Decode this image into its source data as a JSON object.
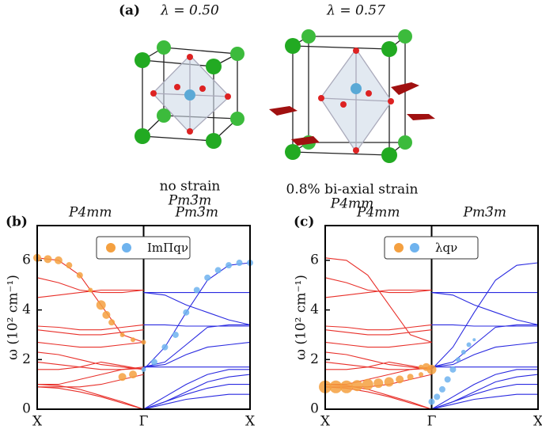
{
  "panel_a": {
    "label": "(a)",
    "structures": [
      {
        "lambda": "λ = 0.50",
        "caption": "no strain",
        "group": "Pm3̄m"
      },
      {
        "lambda": "λ = 0.57",
        "caption": "0.8% bi-axial strain",
        "group": "P4mm"
      }
    ]
  },
  "chart_data": [
    {
      "type": "dispersion",
      "panel_label": "(b)",
      "left_title": "P4mm",
      "left_color": "#e8302a",
      "right_title": "Pm3̄m",
      "right_color": "#2a2ae0",
      "ylabel": "ω (10² cm⁻¹)",
      "xlim": [
        0,
        2
      ],
      "ylim": [
        0,
        7.4
      ],
      "xticks": [
        {
          "value": 0,
          "label": "X"
        },
        {
          "value": 1,
          "label": "Γ"
        },
        {
          "value": 2,
          "label": "X"
        }
      ],
      "yticks": [
        0,
        2,
        4,
        6
      ],
      "legend": {
        "label": "ImΠqν",
        "colors": [
          "#f4a040",
          "#6fb3ee"
        ]
      },
      "series": [
        {
          "color": "#e8302a",
          "x": [
            0,
            0.2,
            0.4,
            0.6,
            0.8,
            1
          ],
          "values": [
            6.1,
            6.0,
            5.4,
            4.2,
            3.0,
            2.7
          ]
        },
        {
          "color": "#e8302a",
          "x": [
            0,
            0.2,
            0.4,
            0.6,
            0.8,
            1
          ],
          "values": [
            5.3,
            5.1,
            4.8,
            4.7,
            4.7,
            4.8
          ]
        },
        {
          "color": "#e8302a",
          "x": [
            0,
            0.2,
            0.4,
            0.6,
            0.8,
            1
          ],
          "values": [
            4.5,
            4.6,
            4.7,
            4.8,
            4.8,
            4.8
          ]
        },
        {
          "color": "#e8302a",
          "x": [
            0,
            0.2,
            0.4,
            0.6,
            0.8,
            1
          ],
          "values": [
            3.35,
            3.3,
            3.2,
            3.2,
            3.3,
            3.4
          ]
        },
        {
          "color": "#e8302a",
          "x": [
            0,
            0.2,
            0.4,
            0.6,
            0.8,
            1
          ],
          "values": [
            3.2,
            3.1,
            3.0,
            3.0,
            3.1,
            3.2
          ]
        },
        {
          "color": "#e8302a",
          "x": [
            0,
            0.2,
            0.4,
            0.6,
            0.8,
            1
          ],
          "values": [
            2.7,
            2.6,
            2.5,
            2.5,
            2.6,
            2.7
          ]
        },
        {
          "color": "#e8302a",
          "x": [
            0,
            0.2,
            0.4,
            0.6,
            0.8,
            1
          ],
          "values": [
            2.3,
            2.2,
            2.0,
            1.8,
            1.7,
            1.6
          ]
        },
        {
          "color": "#e8302a",
          "x": [
            0,
            0.2,
            0.4,
            0.6,
            0.8,
            1
          ],
          "values": [
            1.9,
            1.8,
            1.7,
            1.6,
            1.6,
            1.65
          ]
        },
        {
          "color": "#e8302a",
          "x": [
            0,
            0.2,
            0.4,
            0.6,
            0.8,
            1
          ],
          "values": [
            1.6,
            1.6,
            1.7,
            1.9,
            1.75,
            1.6
          ]
        },
        {
          "color": "#e8302a",
          "x": [
            0,
            0.2,
            0.4,
            0.6,
            0.8,
            1
          ],
          "values": [
            1.0,
            1.0,
            1.2,
            1.4,
            1.6,
            1.7
          ]
        },
        {
          "color": "#e8302a",
          "x": [
            0,
            0.2,
            0.4,
            0.6,
            0.8,
            1
          ],
          "values": [
            0.9,
            0.9,
            0.9,
            1.0,
            1.2,
            1.4
          ]
        },
        {
          "color": "#e8302a",
          "x": [
            0,
            0.2,
            0.4,
            0.6,
            0.8,
            1
          ],
          "values": [
            1.0,
            0.95,
            0.8,
            0.55,
            0.3,
            0
          ]
        },
        {
          "color": "#e8302a",
          "x": [
            0,
            0.2,
            0.4,
            0.6,
            0.8,
            1
          ],
          "values": [
            0.9,
            0.85,
            0.7,
            0.5,
            0.25,
            0
          ]
        },
        {
          "color": "#2a2ae0",
          "x": [
            1,
            1.2,
            1.4,
            1.6,
            1.8,
            2
          ],
          "values": [
            1.6,
            2.5,
            3.9,
            5.2,
            5.8,
            5.9
          ]
        },
        {
          "color": "#2a2ae0",
          "x": [
            1,
            1.2,
            1.4,
            1.6,
            1.8,
            2
          ],
          "values": [
            1.7,
            1.9,
            2.6,
            3.3,
            3.4,
            3.4
          ]
        },
        {
          "color": "#2a2ae0",
          "x": [
            1,
            1.2,
            1.4,
            1.6,
            1.8,
            2
          ],
          "values": [
            4.7,
            4.6,
            4.2,
            3.9,
            3.6,
            3.4
          ]
        },
        {
          "color": "#2a2ae0",
          "x": [
            1,
            1.2,
            1.4,
            1.6,
            1.8,
            2
          ],
          "values": [
            4.7,
            4.7,
            4.7,
            4.7,
            4.7,
            4.7
          ]
        },
        {
          "color": "#2a2ae0",
          "x": [
            1,
            1.2,
            1.4,
            1.6,
            1.8,
            2
          ],
          "values": [
            3.4,
            3.4,
            3.35,
            3.35,
            3.35,
            3.35
          ]
        },
        {
          "color": "#2a2ae0",
          "x": [
            1,
            1.2,
            1.4,
            1.6,
            1.8,
            2
          ],
          "values": [
            1.7,
            1.7,
            1.7,
            1.7,
            1.7,
            1.7
          ]
        },
        {
          "color": "#2a2ae0",
          "x": [
            1,
            1.2,
            1.4,
            1.6,
            1.8,
            2
          ],
          "values": [
            1.7,
            1.8,
            2.2,
            2.5,
            2.6,
            2.7
          ]
        },
        {
          "color": "#2a2ae0",
          "x": [
            1,
            1.2,
            1.4,
            1.6,
            1.8,
            2
          ],
          "values": [
            0,
            0.5,
            1.0,
            1.4,
            1.6,
            1.6
          ]
        },
        {
          "color": "#2a2ae0",
          "x": [
            1,
            1.2,
            1.4,
            1.6,
            1.8,
            2
          ],
          "values": [
            0,
            0.3,
            0.6,
            0.85,
            1.0,
            1.0
          ]
        },
        {
          "color": "#2a2ae0",
          "x": [
            1,
            1.2,
            1.4,
            1.6,
            1.8,
            2
          ],
          "values": [
            0,
            0.2,
            0.4,
            0.5,
            0.6,
            0.6
          ]
        },
        {
          "color": "#2a2ae0",
          "x": [
            1,
            1.2,
            1.4,
            1.6,
            1.8,
            2
          ],
          "values": [
            0,
            0.3,
            0.7,
            1.1,
            1.3,
            1.4
          ]
        }
      ],
      "fat": [
        {
          "color": "#f4a040",
          "x": [
            0,
            0.1,
            0.2,
            0.3,
            0.4,
            0.5,
            0.6,
            0.65,
            0.7,
            0.8,
            0.9,
            1.0,
            0.8,
            0.9
          ],
          "values": [
            6.1,
            6.05,
            6.0,
            5.8,
            5.4,
            4.8,
            4.2,
            3.8,
            3.5,
            3.0,
            2.8,
            2.7,
            1.3,
            1.4
          ],
          "sizes": [
            5,
            5,
            5,
            4,
            4,
            3,
            6,
            5,
            4,
            3,
            3,
            3,
            5,
            5
          ]
        },
        {
          "color": "#6fb3ee",
          "x": [
            1.0,
            1.1,
            1.2,
            1.3,
            1.4,
            1.5,
            1.6,
            1.7,
            1.8,
            1.9,
            2.0
          ],
          "values": [
            1.6,
            1.9,
            2.5,
            3.0,
            3.9,
            4.8,
            5.3,
            5.6,
            5.8,
            5.9,
            5.9
          ],
          "sizes": [
            3,
            4,
            4,
            4,
            4,
            4,
            4,
            4,
            4,
            4,
            4
          ]
        }
      ]
    },
    {
      "type": "dispersion",
      "panel_label": "(c)",
      "left_title": "P4mm",
      "left_color": "#e8302a",
      "right_title": "Pm3̄m",
      "right_color": "#2a2ae0",
      "ylabel": "ω (10² cm⁻¹)",
      "xlim": [
        0,
        2
      ],
      "ylim": [
        0,
        7.4
      ],
      "xticks": [
        {
          "value": 0,
          "label": "X"
        },
        {
          "value": 1,
          "label": "Γ"
        },
        {
          "value": 2,
          "label": "X"
        }
      ],
      "yticks": [
        0,
        2,
        4,
        6
      ],
      "legend": {
        "label": "λqν",
        "colors": [
          "#f4a040",
          "#6fb3ee"
        ]
      },
      "series": [
        {
          "color": "#e8302a",
          "x": [
            0,
            0.2,
            0.4,
            0.6,
            0.8,
            1
          ],
          "values": [
            6.1,
            6.0,
            5.4,
            4.2,
            3.0,
            2.7
          ]
        },
        {
          "color": "#e8302a",
          "x": [
            0,
            0.2,
            0.4,
            0.6,
            0.8,
            1
          ],
          "values": [
            5.3,
            5.1,
            4.8,
            4.7,
            4.7,
            4.8
          ]
        },
        {
          "color": "#e8302a",
          "x": [
            0,
            0.2,
            0.4,
            0.6,
            0.8,
            1
          ],
          "values": [
            4.5,
            4.6,
            4.7,
            4.8,
            4.8,
            4.8
          ]
        },
        {
          "color": "#e8302a",
          "x": [
            0,
            0.2,
            0.4,
            0.6,
            0.8,
            1
          ],
          "values": [
            3.35,
            3.3,
            3.2,
            3.2,
            3.3,
            3.4
          ]
        },
        {
          "color": "#e8302a",
          "x": [
            0,
            0.2,
            0.4,
            0.6,
            0.8,
            1
          ],
          "values": [
            3.2,
            3.1,
            3.0,
            3.0,
            3.1,
            3.2
          ]
        },
        {
          "color": "#e8302a",
          "x": [
            0,
            0.2,
            0.4,
            0.6,
            0.8,
            1
          ],
          "values": [
            2.7,
            2.6,
            2.5,
            2.5,
            2.6,
            2.7
          ]
        },
        {
          "color": "#e8302a",
          "x": [
            0,
            0.2,
            0.4,
            0.6,
            0.8,
            1
          ],
          "values": [
            2.3,
            2.2,
            2.0,
            1.8,
            1.7,
            1.6
          ]
        },
        {
          "color": "#e8302a",
          "x": [
            0,
            0.2,
            0.4,
            0.6,
            0.8,
            1
          ],
          "values": [
            1.9,
            1.8,
            1.7,
            1.6,
            1.6,
            1.65
          ]
        },
        {
          "color": "#e8302a",
          "x": [
            0,
            0.2,
            0.4,
            0.6,
            0.8,
            1
          ],
          "values": [
            1.6,
            1.6,
            1.7,
            1.9,
            1.75,
            1.6
          ]
        },
        {
          "color": "#e8302a",
          "x": [
            0,
            0.2,
            0.4,
            0.6,
            0.8,
            1
          ],
          "values": [
            1.0,
            1.0,
            1.2,
            1.4,
            1.6,
            1.7
          ]
        },
        {
          "color": "#e8302a",
          "x": [
            0,
            0.2,
            0.4,
            0.6,
            0.8,
            1
          ],
          "values": [
            0.9,
            0.9,
            0.9,
            1.0,
            1.2,
            1.4
          ]
        },
        {
          "color": "#e8302a",
          "x": [
            0,
            0.2,
            0.4,
            0.6,
            0.8,
            1
          ],
          "values": [
            1.0,
            0.95,
            0.8,
            0.55,
            0.3,
            0
          ]
        },
        {
          "color": "#e8302a",
          "x": [
            0,
            0.2,
            0.4,
            0.6,
            0.8,
            1
          ],
          "values": [
            0.9,
            0.85,
            0.7,
            0.5,
            0.25,
            0
          ]
        },
        {
          "color": "#2a2ae0",
          "x": [
            1,
            1.2,
            1.4,
            1.6,
            1.8,
            2
          ],
          "values": [
            1.6,
            2.5,
            3.9,
            5.2,
            5.8,
            5.9
          ]
        },
        {
          "color": "#2a2ae0",
          "x": [
            1,
            1.2,
            1.4,
            1.6,
            1.8,
            2
          ],
          "values": [
            1.7,
            1.9,
            2.6,
            3.3,
            3.4,
            3.4
          ]
        },
        {
          "color": "#2a2ae0",
          "x": [
            1,
            1.2,
            1.4,
            1.6,
            1.8,
            2
          ],
          "values": [
            4.7,
            4.6,
            4.2,
            3.9,
            3.6,
            3.4
          ]
        },
        {
          "color": "#2a2ae0",
          "x": [
            1,
            1.2,
            1.4,
            1.6,
            1.8,
            2
          ],
          "values": [
            4.7,
            4.7,
            4.7,
            4.7,
            4.7,
            4.7
          ]
        },
        {
          "color": "#2a2ae0",
          "x": [
            1,
            1.2,
            1.4,
            1.6,
            1.8,
            2
          ],
          "values": [
            3.4,
            3.4,
            3.35,
            3.35,
            3.35,
            3.35
          ]
        },
        {
          "color": "#2a2ae0",
          "x": [
            1,
            1.2,
            1.4,
            1.6,
            1.8,
            2
          ],
          "values": [
            1.7,
            1.7,
            1.7,
            1.7,
            1.7,
            1.7
          ]
        },
        {
          "color": "#2a2ae0",
          "x": [
            1,
            1.2,
            1.4,
            1.6,
            1.8,
            2
          ],
          "values": [
            1.7,
            1.8,
            2.2,
            2.5,
            2.6,
            2.7
          ]
        },
        {
          "color": "#2a2ae0",
          "x": [
            1,
            1.2,
            1.4,
            1.6,
            1.8,
            2
          ],
          "values": [
            0,
            0.5,
            1.0,
            1.4,
            1.6,
            1.6
          ]
        },
        {
          "color": "#2a2ae0",
          "x": [
            1,
            1.2,
            1.4,
            1.6,
            1.8,
            2
          ],
          "values": [
            0,
            0.3,
            0.6,
            0.85,
            1.0,
            1.0
          ]
        },
        {
          "color": "#2a2ae0",
          "x": [
            1,
            1.2,
            1.4,
            1.6,
            1.8,
            2
          ],
          "values": [
            0,
            0.2,
            0.4,
            0.5,
            0.6,
            0.6
          ]
        },
        {
          "color": "#2a2ae0",
          "x": [
            1,
            1.2,
            1.4,
            1.6,
            1.8,
            2
          ],
          "values": [
            0,
            0.3,
            0.7,
            1.1,
            1.3,
            1.4
          ]
        }
      ],
      "fat": [
        {
          "color": "#f4a040",
          "x": [
            0,
            0.1,
            0.2,
            0.3,
            0.4,
            0.5,
            0.6,
            0.7,
            0.8,
            0.9,
            0.9,
            0.95,
            1.0
          ],
          "values": [
            0.9,
            0.9,
            0.9,
            0.95,
            1.0,
            1.05,
            1.1,
            1.2,
            1.3,
            1.4,
            1.7,
            1.7,
            1.6
          ],
          "sizes": [
            8,
            8,
            8,
            7,
            7,
            6,
            6,
            5,
            4,
            3,
            3,
            5,
            6
          ]
        },
        {
          "color": "#6fb3ee",
          "x": [
            1.0,
            1.05,
            1.1,
            1.15,
            1.2,
            1.25,
            1.3,
            1.35,
            1.4
          ],
          "values": [
            0.3,
            0.5,
            0.8,
            1.2,
            1.6,
            2.0,
            2.3,
            2.6,
            2.8
          ],
          "sizes": [
            4,
            4,
            4,
            4,
            4,
            3,
            3,
            3,
            2
          ]
        }
      ]
    }
  ]
}
